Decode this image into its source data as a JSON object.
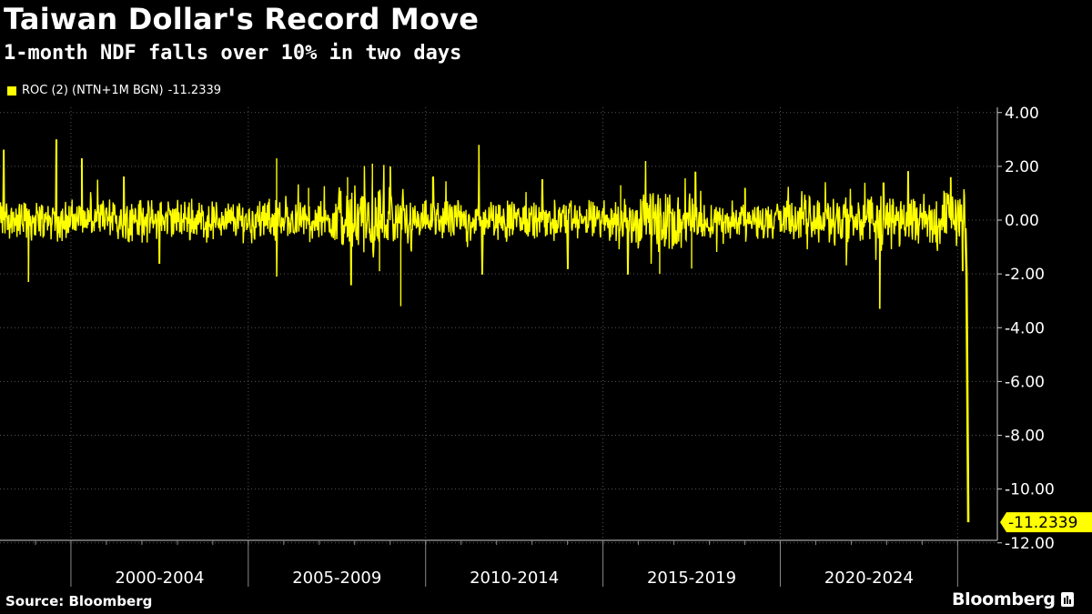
{
  "title": "Taiwan Dollar's Record Move",
  "subtitle": "1-month NDF falls over 10% in two days",
  "source": "Source: Bloomberg",
  "brand": "Bloomberg",
  "chart_data": {
    "type": "line",
    "x_unit": "year",
    "x_range": [
      1998,
      2025.35
    ],
    "ylim": [
      -12,
      4
    ],
    "y_ticks": [
      "4.00",
      "2.00",
      "0.00",
      "-2.00",
      "-4.00",
      "-6.00",
      "-8.00",
      "-10.00",
      "-12.00"
    ],
    "y_tick_values": [
      4,
      2,
      0,
      -2,
      -4,
      -6,
      -8,
      -10,
      -12
    ],
    "x_period_labels": [
      {
        "label": "2000-2004",
        "start": 2000,
        "end": 2005
      },
      {
        "label": "2005-2009",
        "start": 2005,
        "end": 2010
      },
      {
        "label": "2010-2014",
        "start": 2010,
        "end": 2015
      },
      {
        "label": "2015-2019",
        "start": 2015,
        "end": 2020
      },
      {
        "label": "2020-2024",
        "start": 2020,
        "end": 2025
      }
    ],
    "grid": true,
    "series": [
      {
        "name": "ROC (2) (NTN+1M BGN)",
        "color": "#ffff00",
        "last_value": "-11.2339",
        "typical_band": [
          -1.0,
          1.0
        ],
        "spikes": [
          {
            "x": 1998.1,
            "y": 2.6
          },
          {
            "x": 1998.8,
            "y": -2.3
          },
          {
            "x": 1999.6,
            "y": 3.0
          },
          {
            "x": 2000.3,
            "y": 2.3
          },
          {
            "x": 2001.5,
            "y": 1.6
          },
          {
            "x": 2002.5,
            "y": -1.6
          },
          {
            "x": 2005.8,
            "y": 2.3
          },
          {
            "x": 2005.8,
            "y": -2.1
          },
          {
            "x": 2006.7,
            "y": 1.2
          },
          {
            "x": 2007.8,
            "y": 1.6
          },
          {
            "x": 2007.9,
            "y": -2.4
          },
          {
            "x": 2008.5,
            "y": 2.1
          },
          {
            "x": 2008.7,
            "y": -1.9
          },
          {
            "x": 2009.0,
            "y": 2.0
          },
          {
            "x": 2009.3,
            "y": -3.2
          },
          {
            "x": 2010.2,
            "y": 1.6
          },
          {
            "x": 2011.5,
            "y": 2.8
          },
          {
            "x": 2011.6,
            "y": -2.0
          },
          {
            "x": 2013.3,
            "y": 1.5
          },
          {
            "x": 2014.0,
            "y": -1.8
          },
          {
            "x": 2015.5,
            "y": 1.3
          },
          {
            "x": 2015.7,
            "y": -2.0
          },
          {
            "x": 2016.2,
            "y": 2.2
          },
          {
            "x": 2016.6,
            "y": -2.0
          },
          {
            "x": 2017.5,
            "y": -1.8
          },
          {
            "x": 2017.6,
            "y": 1.8
          },
          {
            "x": 2019.0,
            "y": 1.2
          },
          {
            "x": 2022.8,
            "y": -3.3
          },
          {
            "x": 2022.9,
            "y": 1.4
          },
          {
            "x": 2023.6,
            "y": 1.8
          },
          {
            "x": 2024.8,
            "y": 1.6
          },
          {
            "x": 2025.15,
            "y": -1.9
          }
        ],
        "final_points": [
          {
            "x": 2025.25,
            "y": -2.0
          },
          {
            "x": 2025.3,
            "y": -11.2339
          }
        ]
      }
    ]
  }
}
